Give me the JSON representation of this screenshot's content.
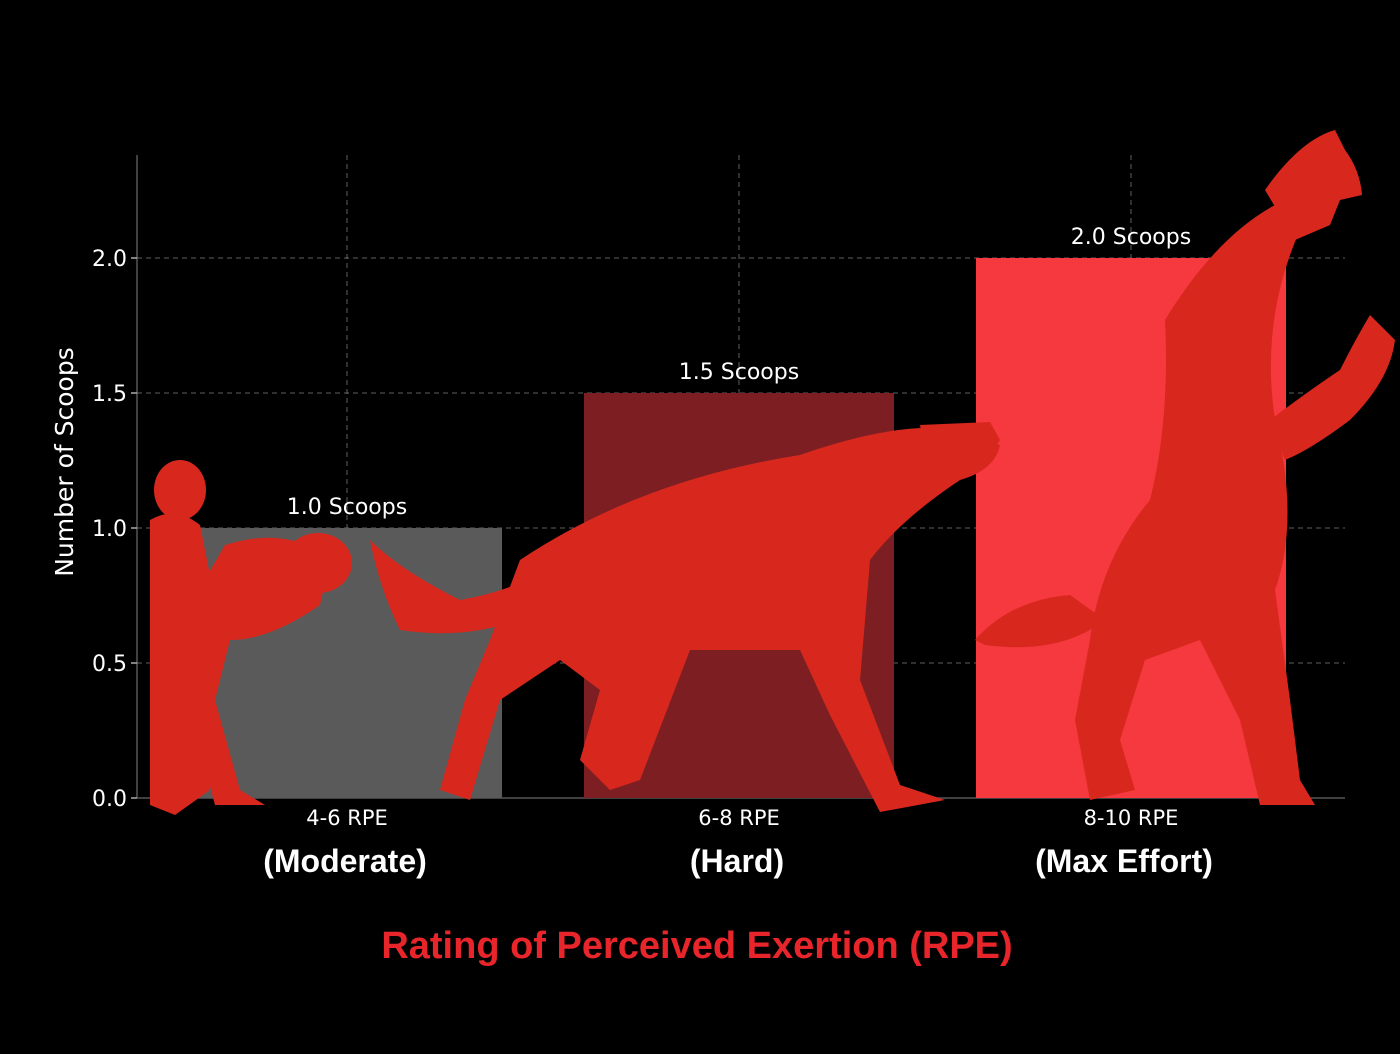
{
  "chart_data": {
    "type": "bar",
    "categories": [
      "4-6 RPE",
      "6-8 RPE",
      "8-10 RPE"
    ],
    "category_subtitles": [
      "(Moderate)",
      "(Hard)",
      "(Max Effort)"
    ],
    "values": [
      1.0,
      1.5,
      2.0
    ],
    "data_labels": [
      "1.0 Scoops",
      "1.5 Scoops",
      "2.0 Scoops"
    ],
    "bar_colors": [
      "#5a5a5a",
      "#7d1f22",
      "#f6393e"
    ],
    "xlabel": "Rating of Perceived Exertion (RPE)",
    "ylabel": "Number of Scoops",
    "ylim": [
      0,
      2.4
    ],
    "yticks": [
      "0.0",
      "0.5",
      "1.0",
      "1.5",
      "2.0"
    ],
    "grid": true,
    "colors": {
      "background": "#000000",
      "text": "#ffffff",
      "xlabel": "#e8252b",
      "figures": "#d8281e"
    },
    "illustrations": [
      "human-figure",
      "wolf-figure",
      "werewolf-figure"
    ]
  }
}
